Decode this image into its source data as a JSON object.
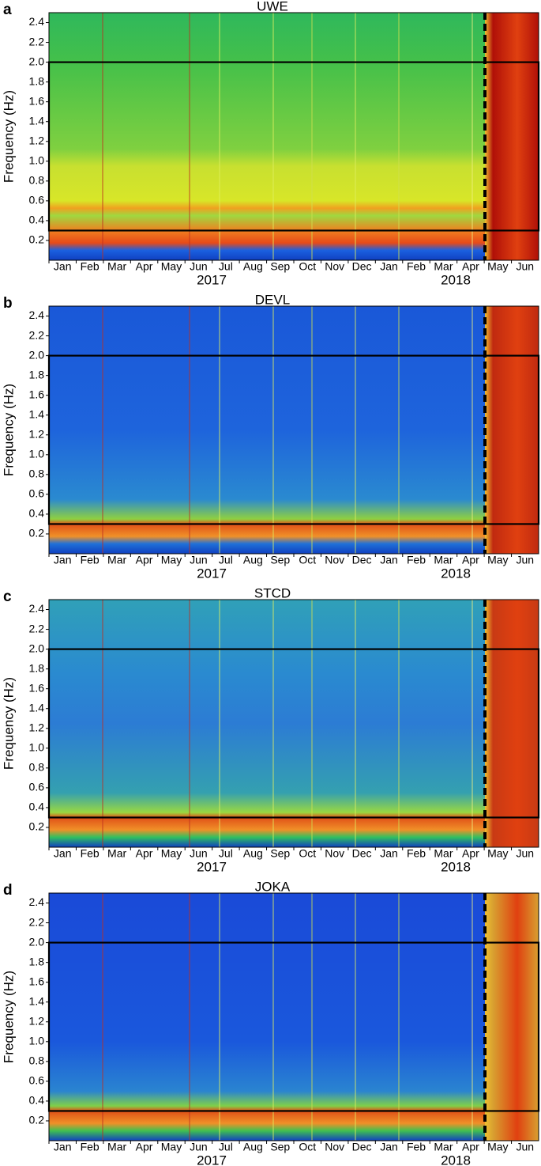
{
  "chart_data": [
    {
      "type": "spectrogram",
      "panel": "a",
      "title": "UWE",
      "y_label": "Frequency (Hz)",
      "ylim": [
        0,
        2.5
      ],
      "yticks": [
        0.2,
        0.4,
        0.6,
        0.8,
        {
          "value": 1,
          "label": "1.0"
        },
        1.2,
        1.4,
        1.6,
        1.8,
        {
          "value": 2,
          "label": "2.0"
        },
        2.2,
        2.4
      ],
      "categories": [
        "Jan",
        "Feb",
        "Mar",
        "Apr",
        "May",
        "Jun",
        "Jul",
        "Aug",
        "Sep",
        "Oct",
        "Nov",
        "Dec",
        "Jan",
        "Feb",
        "Mar",
        "Apr",
        "May",
        "Jun"
      ],
      "years": [
        "2017",
        "2018"
      ],
      "box_ylim": [
        0.3,
        2.0
      ]
    },
    {
      "type": "spectrogram",
      "panel": "b",
      "title": "DEVL",
      "y_label": "Frequency (Hz)",
      "ylim": [
        0,
        2.5
      ],
      "yticks": [
        0.2,
        0.4,
        0.6,
        0.8,
        {
          "value": 1,
          "label": "1.0"
        },
        1.2,
        1.4,
        1.6,
        1.8,
        {
          "value": 2,
          "label": "2.0"
        },
        2.2,
        2.4
      ],
      "categories": [
        "Jan",
        "Feb",
        "Mar",
        "Apr",
        "May",
        "Jun",
        "Jul",
        "Aug",
        "Sep",
        "Oct",
        "Nov",
        "Dec",
        "Jan",
        "Feb",
        "Mar",
        "Apr",
        "May",
        "Jun"
      ],
      "years": [
        "2017",
        "2018"
      ],
      "box_ylim": [
        0.3,
        2.0
      ]
    },
    {
      "type": "spectrogram",
      "panel": "c",
      "title": "STCD",
      "y_label": "Frequency (Hz)",
      "ylim": [
        0,
        2.5
      ],
      "yticks": [
        0.2,
        0.4,
        0.6,
        0.8,
        {
          "value": 1,
          "label": "1.0"
        },
        1.2,
        1.4,
        1.6,
        1.8,
        {
          "value": 2,
          "label": "2.0"
        },
        2.2,
        2.4
      ],
      "categories": [
        "Jan",
        "Feb",
        "Mar",
        "Apr",
        "May",
        "Jun",
        "Jul",
        "Aug",
        "Sep",
        "Oct",
        "Nov",
        "Dec",
        "Jan",
        "Feb",
        "Mar",
        "Apr",
        "May",
        "Jun"
      ],
      "years": [
        "2017",
        "2018"
      ],
      "box_ylim": [
        0.3,
        2.0
      ]
    },
    {
      "type": "spectrogram",
      "panel": "d",
      "title": "JOKA",
      "y_label": "Frequency (Hz)",
      "ylim": [
        0,
        2.5
      ],
      "yticks": [
        0.2,
        0.4,
        0.6,
        0.8,
        {
          "value": 1,
          "label": "1.0"
        },
        1.2,
        1.4,
        1.6,
        1.8,
        {
          "value": 2,
          "label": "2.0"
        },
        2.2,
        2.4
      ],
      "categories": [
        "Jan",
        "Feb",
        "Mar",
        "Apr",
        "May",
        "Jun",
        "Jul",
        "Aug",
        "Sep",
        "Oct",
        "Nov",
        "Dec",
        "Jan",
        "Feb",
        "Mar",
        "Apr",
        "May",
        "Jun"
      ],
      "years": [
        "2017",
        "2018"
      ],
      "box_ylim": [
        0.3,
        2.0
      ]
    }
  ]
}
